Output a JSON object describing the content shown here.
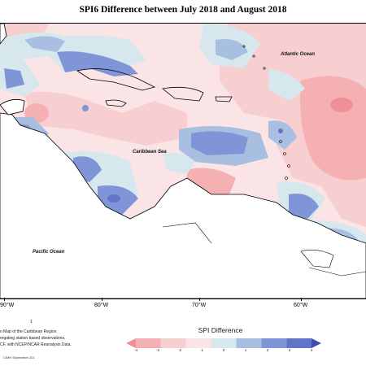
{
  "title": "SPI6 Difference between July 2018 and August 2018",
  "labels": {
    "atlantic": "Atlantic Ocean",
    "caribbean": "Caribbean Sea",
    "pacific": "Pacific Ocean"
  },
  "longitude_ticks": [
    "90°W",
    "80°W",
    "70°W",
    "60°W"
  ],
  "notes": [
    "n Map of the Caribbean Region",
    "regating station based observations,",
    "CF, with NCEP/NCAR Reanalysis Data."
  ],
  "note_marker": "1",
  "credit": "CIMH September 201",
  "legend": {
    "title": "SPI Difference",
    "ticks": [
      "-4",
      "-3",
      "-2",
      "-1",
      "0",
      "1",
      "2",
      "3",
      "4"
    ],
    "colors": [
      "#f08f96",
      "#f5b0b4",
      "#f8cfd1",
      "#fbe4e5",
      "#d6e8ee",
      "#a9bfe2",
      "#7f95d8",
      "#6274c7",
      "#3e4ea9"
    ]
  },
  "colors": {
    "land": "#ffffff",
    "coast": "#000000"
  }
}
